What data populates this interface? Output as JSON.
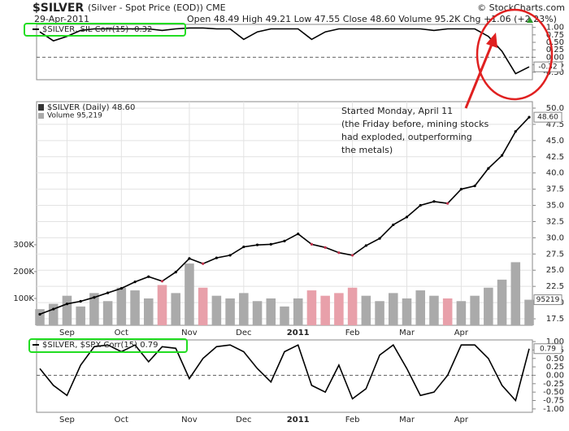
{
  "header": {
    "title": "$SILVER",
    "subtitle": "(Silver - Spot Price (EOD)) CME",
    "date": "29-Apr-2011",
    "stats": "Open 48.49  High 49.21  Low 47.55  Close 48.60  Volume 95.2K  Chg +1.06 (+2.23%)",
    "source": "© StockCharts.com"
  },
  "chart_data": [
    {
      "type": "line",
      "legend": "$SILVER, SIL Corr(15) -0.32",
      "color": "#000000",
      "values": [
        0.85,
        0.55,
        0.7,
        0.9,
        0.95,
        0.95,
        0.95,
        0.95,
        0.95,
        0.9,
        0.95,
        0.98,
        0.98,
        0.95,
        0.95,
        0.6,
        0.85,
        0.95,
        0.95,
        0.95,
        0.6,
        0.85,
        0.95,
        0.95,
        0.95,
        0.95,
        0.95,
        0.95,
        0.95,
        0.9,
        0.95,
        0.95,
        0.95,
        0.7,
        0.2,
        -0.55,
        -0.32
      ],
      "last_label": "-0.32",
      "ylim": [
        -0.75,
        1.1
      ],
      "yticks": [
        {
          "value": 1,
          "label": "1.00"
        },
        0.75,
        {
          "value": 0.5,
          "label": "0.50"
        },
        0.25,
        {
          "value": 0,
          "label": "0.00"
        },
        -0.25,
        {
          "value": -0.5,
          "label": "-0.50"
        }
      ],
      "zero_line": true
    },
    {
      "type": "price",
      "legend": "$SILVER (Daily) 48.60",
      "categories": [
        null,
        null,
        "Sep",
        null,
        null,
        null,
        "Oct",
        null,
        null,
        null,
        null,
        "Nov",
        null,
        null,
        null,
        "Dec",
        null,
        null,
        null,
        "2011",
        null,
        null,
        null,
        "Feb",
        null,
        null,
        null,
        "Mar",
        null,
        null,
        null,
        "Apr",
        null,
        null,
        null,
        null,
        null
      ],
      "series": [
        {
          "name": "$SILVER",
          "color": "#000000",
          "values": [
            18.2,
            19.0,
            19.8,
            20.2,
            20.8,
            21.5,
            22.2,
            23.2,
            24.0,
            23.3,
            24.7,
            26.8,
            26.0,
            26.9,
            27.3,
            28.6,
            28.9,
            29.0,
            29.5,
            30.6,
            29.0,
            28.5,
            27.7,
            27.3,
            28.8,
            29.9,
            32.0,
            33.2,
            35.0,
            35.6,
            35.3,
            37.5,
            38.0,
            40.7,
            42.7,
            46.4,
            48.6
          ],
          "last_label": "48.60"
        },
        {
          "name": "Volume 95,219",
          "axis": "y2",
          "color": "#aaaaaa",
          "down_color": "#e8a0aa",
          "values": [
            60000,
            80000,
            110000,
            70000,
            120000,
            90000,
            140000,
            130000,
            100000,
            150000,
            120000,
            230000,
            140000,
            110000,
            100000,
            120000,
            90000,
            100000,
            70000,
            100000,
            130000,
            110000,
            120000,
            140000,
            110000,
            90000,
            120000,
            100000,
            130000,
            110000,
            100000,
            90000,
            110000,
            140000,
            170000,
            235000,
            95219
          ],
          "last_label": "95219"
        }
      ],
      "ylim": [
        16.5,
        51
      ],
      "yticks": [
        {
          "value": 17.5,
          "label": "17.5"
        },
        {
          "value": 20,
          "label": "20.0"
        },
        22.5,
        {
          "value": 25,
          "label": "25.0"
        },
        27.5,
        {
          "value": 30,
          "label": "30.0"
        },
        32.5,
        {
          "value": 35,
          "label": "35.0"
        },
        37.5,
        {
          "value": 40,
          "label": "40.0"
        },
        42.5,
        {
          "value": 45,
          "label": "45.0"
        },
        47.5,
        {
          "value": 50,
          "label": "50.0"
        }
      ],
      "y2lim": [
        0,
        833000
      ],
      "y2ticks": [
        {
          "value": 100000,
          "label": "100K"
        },
        {
          "value": 200000,
          "label": "200K"
        },
        {
          "value": 300000,
          "label": "300K"
        }
      ],
      "grid": true,
      "annotation": [
        "Started Monday, April 11",
        "(the Friday before, mining stocks",
        "had exploded, outperforming",
        "the metals)"
      ]
    },
    {
      "type": "line",
      "legend": "$SILVER, $SPX Corr(15) 0.79",
      "color": "#000000",
      "categories": [
        null,
        null,
        "Sep",
        null,
        null,
        null,
        "Oct",
        null,
        null,
        null,
        null,
        "Nov",
        null,
        null,
        null,
        "Dec",
        null,
        null,
        null,
        "2011",
        null,
        null,
        null,
        "Feb",
        null,
        null,
        null,
        "Mar",
        null,
        null,
        null,
        "Apr",
        null,
        null,
        null,
        null,
        null
      ],
      "values": [
        0.2,
        -0.3,
        -0.6,
        0.3,
        0.85,
        0.9,
        0.7,
        0.9,
        0.4,
        0.85,
        0.8,
        -0.1,
        0.5,
        0.85,
        0.9,
        0.7,
        0.2,
        -0.2,
        0.7,
        0.9,
        -0.3,
        -0.5,
        0.3,
        -0.7,
        -0.4,
        0.6,
        0.9,
        0.2,
        -0.6,
        -0.5,
        0.0,
        0.9,
        0.9,
        0.5,
        -0.3,
        -0.75,
        0.79
      ],
      "last_label": "0.79",
      "ylim": [
        -1.1,
        1.05
      ],
      "yticks": [
        {
          "value": 1,
          "label": "1.00"
        },
        0.75,
        {
          "value": 0.5,
          "label": "0.50"
        },
        0.25,
        {
          "value": 0,
          "label": "0.00"
        },
        -0.25,
        {
          "value": -0.5,
          "label": "-0.50"
        },
        -0.75,
        {
          "value": -1,
          "label": "-1.00"
        }
      ],
      "zero_line": true
    }
  ]
}
